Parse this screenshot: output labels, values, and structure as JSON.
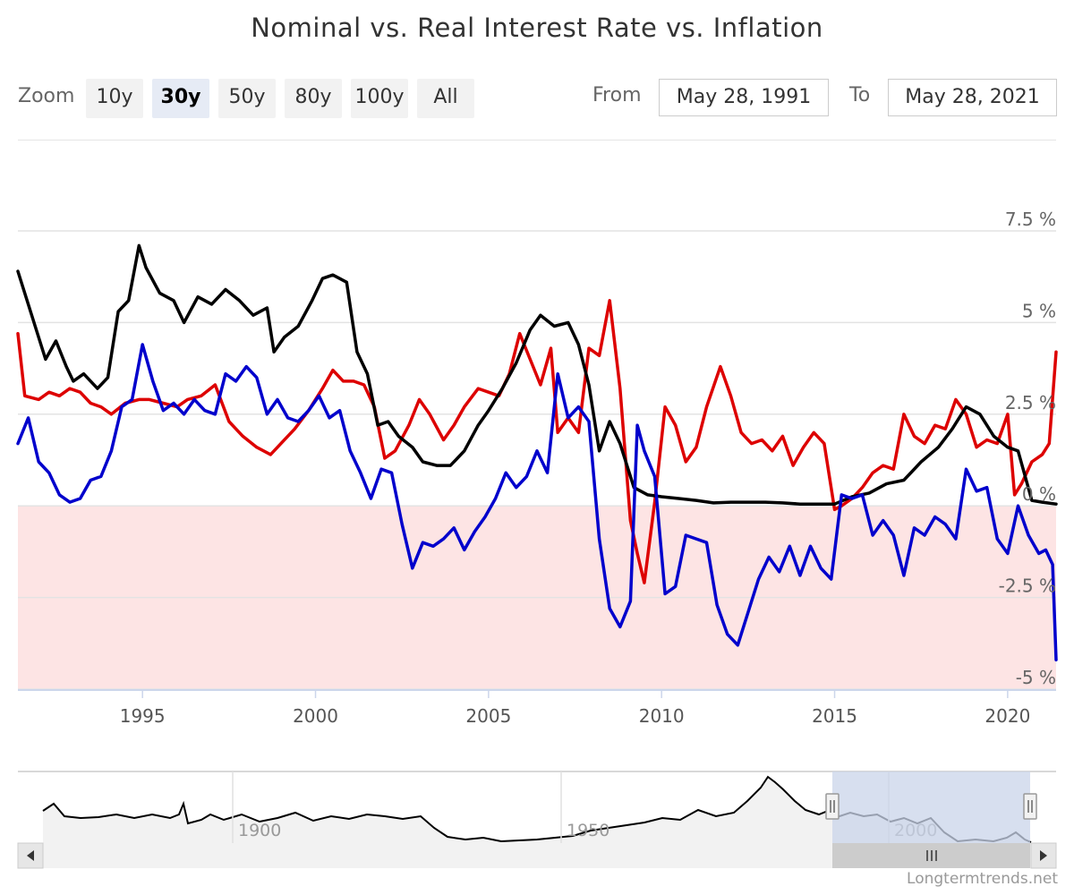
{
  "title": "Nominal vs. Real Interest Rate vs. Inflation",
  "zoom": {
    "label": "Zoom",
    "buttons": [
      "10y",
      "30y",
      "50y",
      "80y",
      "100y",
      "All"
    ],
    "active": "30y"
  },
  "range": {
    "from_label": "From",
    "from_value": "May 28, 1991",
    "to_label": "To",
    "to_value": "May 28, 2021"
  },
  "credit": "Longtermtrends.net",
  "colors": {
    "nominal": "#000000",
    "inflation": "#dd0000",
    "real": "#0000cc",
    "negative_band": "#fde4e4",
    "navigator_mask": "#c9d4ea"
  },
  "chart_data": {
    "type": "line",
    "title": "Nominal vs. Real Interest Rate vs. Inflation",
    "xlim": [
      1991.4,
      2021.4
    ],
    "ylim": [
      -5,
      7.5
    ],
    "y_ticks": [
      -5,
      -2.5,
      0,
      2.5,
      5,
      7.5
    ],
    "y_tick_labels": [
      "-5 %",
      "-2.5 %",
      "0 %",
      "2.5 %",
      "5 %",
      "7.5 %"
    ],
    "x_ticks": [
      1995,
      2000,
      2005,
      2010,
      2015,
      2020
    ],
    "x_tick_labels": [
      "1995",
      "2000",
      "2005",
      "2010",
      "2015",
      "2020"
    ],
    "negative_region": [
      -5,
      0
    ],
    "grid": true,
    "series": [
      {
        "key": "nominal",
        "x": [
          1991.4,
          1991.6,
          1991.9,
          1992.2,
          1992.5,
          1992.8,
          1993.0,
          1993.3,
          1993.7,
          1994.0,
          1994.3,
          1994.6,
          1994.9,
          1995.1,
          1995.5,
          1995.9,
          1996.2,
          1996.6,
          1997.0,
          1997.4,
          1997.8,
          1998.2,
          1998.6,
          1998.8,
          1999.1,
          1999.5,
          1999.9,
          2000.2,
          2000.5,
          2000.9,
          2001.2,
          2001.5,
          2001.8,
          2002.1,
          2002.4,
          2002.8,
          2003.1,
          2003.5,
          2003.9,
          2004.3,
          2004.7,
          2005.0,
          2005.4,
          2005.8,
          2006.2,
          2006.5,
          2006.9,
          2007.3,
          2007.6,
          2007.9,
          2008.2,
          2008.5,
          2008.8,
          2009.2,
          2009.6,
          2010.0,
          2010.5,
          2011.0,
          2011.5,
          2012.0,
          2012.5,
          2013.0,
          2013.5,
          2014.0,
          2014.5,
          2015.0,
          2015.5,
          2016.0,
          2016.5,
          2017.0,
          2017.5,
          2018.0,
          2018.4,
          2018.8,
          2019.2,
          2019.6,
          2020.0,
          2020.3,
          2020.7,
          2021.0,
          2021.4
        ],
        "y": [
          6.4,
          5.8,
          4.9,
          4.0,
          4.5,
          3.8,
          3.4,
          3.6,
          3.2,
          3.5,
          5.3,
          5.6,
          7.1,
          6.5,
          5.8,
          5.6,
          5.0,
          5.7,
          5.5,
          5.9,
          5.6,
          5.2,
          5.4,
          4.2,
          4.6,
          4.9,
          5.6,
          6.2,
          6.3,
          6.1,
          4.2,
          3.6,
          2.2,
          2.3,
          1.9,
          1.6,
          1.2,
          1.1,
          1.1,
          1.5,
          2.2,
          2.6,
          3.2,
          3.9,
          4.8,
          5.2,
          4.9,
          5.0,
          4.4,
          3.3,
          1.5,
          2.3,
          1.7,
          0.5,
          0.3,
          0.25,
          0.2,
          0.15,
          0.08,
          0.1,
          0.1,
          0.1,
          0.08,
          0.05,
          0.05,
          0.05,
          0.25,
          0.35,
          0.6,
          0.7,
          1.2,
          1.6,
          2.1,
          2.7,
          2.5,
          1.9,
          1.6,
          1.5,
          0.15,
          0.1,
          0.05
        ]
      },
      {
        "key": "inflation",
        "x": [
          1991.4,
          1991.6,
          1992.0,
          1992.3,
          1992.6,
          1992.9,
          1993.2,
          1993.5,
          1993.8,
          1994.1,
          1994.5,
          1994.9,
          1995.2,
          1995.6,
          1996.0,
          1996.3,
          1996.7,
          1997.1,
          1997.5,
          1997.9,
          1998.3,
          1998.7,
          1999.0,
          1999.4,
          1999.8,
          2000.2,
          2000.5,
          2000.8,
          2001.1,
          2001.4,
          2001.7,
          2002.0,
          2002.3,
          2002.7,
          2003.0,
          2003.3,
          2003.7,
          2004.0,
          2004.3,
          2004.7,
          2005.0,
          2005.3,
          2005.6,
          2005.9,
          2006.2,
          2006.5,
          2006.8,
          2007.0,
          2007.3,
          2007.6,
          2007.9,
          2008.2,
          2008.5,
          2008.8,
          2009.1,
          2009.3,
          2009.5,
          2009.8,
          2010.1,
          2010.4,
          2010.7,
          2011.0,
          2011.3,
          2011.7,
          2012.0,
          2012.3,
          2012.6,
          2012.9,
          2013.2,
          2013.5,
          2013.8,
          2014.1,
          2014.4,
          2014.7,
          2015.0,
          2015.2,
          2015.5,
          2015.8,
          2016.1,
          2016.4,
          2016.7,
          2017.0,
          2017.3,
          2017.6,
          2017.9,
          2018.2,
          2018.5,
          2018.8,
          2019.1,
          2019.4,
          2019.7,
          2020.0,
          2020.2,
          2020.4,
          2020.7,
          2021.0,
          2021.2,
          2021.4
        ],
        "y": [
          4.7,
          3.0,
          2.9,
          3.1,
          3.0,
          3.2,
          3.1,
          2.8,
          2.7,
          2.5,
          2.8,
          2.9,
          2.9,
          2.8,
          2.7,
          2.9,
          3.0,
          3.3,
          2.3,
          1.9,
          1.6,
          1.4,
          1.7,
          2.1,
          2.6,
          3.2,
          3.7,
          3.4,
          3.4,
          3.3,
          2.7,
          1.3,
          1.5,
          2.2,
          2.9,
          2.5,
          1.8,
          2.2,
          2.7,
          3.2,
          3.1,
          3.0,
          3.6,
          4.7,
          4.0,
          3.3,
          4.3,
          2.0,
          2.4,
          2.0,
          4.3,
          4.1,
          5.6,
          3.2,
          -0.4,
          -1.3,
          -2.1,
          0.1,
          2.7,
          2.2,
          1.2,
          1.6,
          2.7,
          3.8,
          3.0,
          2.0,
          1.7,
          1.8,
          1.5,
          1.9,
          1.1,
          1.6,
          2.0,
          1.7,
          -0.1,
          0.0,
          0.2,
          0.5,
          0.9,
          1.1,
          1.0,
          2.5,
          1.9,
          1.7,
          2.2,
          2.1,
          2.9,
          2.5,
          1.6,
          1.8,
          1.7,
          2.5,
          0.3,
          0.6,
          1.2,
          1.4,
          1.7,
          4.2
        ]
      },
      {
        "key": "real",
        "x": [
          1991.4,
          1991.7,
          1992.0,
          1992.3,
          1992.6,
          1992.9,
          1993.2,
          1993.5,
          1993.8,
          1994.1,
          1994.4,
          1994.7,
          1995.0,
          1995.3,
          1995.6,
          1995.9,
          1996.2,
          1996.5,
          1996.8,
          1997.1,
          1997.4,
          1997.7,
          1998.0,
          1998.3,
          1998.6,
          1998.9,
          1999.2,
          1999.5,
          1999.8,
          2000.1,
          2000.4,
          2000.7,
          2001.0,
          2001.3,
          2001.6,
          2001.9,
          2002.2,
          2002.5,
          2002.8,
          2003.1,
          2003.4,
          2003.7,
          2004.0,
          2004.3,
          2004.6,
          2004.9,
          2005.2,
          2005.5,
          2005.8,
          2006.1,
          2006.4,
          2006.7,
          2007.0,
          2007.3,
          2007.6,
          2007.9,
          2008.2,
          2008.5,
          2008.8,
          2009.1,
          2009.3,
          2009.5,
          2009.8,
          2010.1,
          2010.4,
          2010.7,
          2011.0,
          2011.3,
          2011.6,
          2011.9,
          2012.2,
          2012.5,
          2012.8,
          2013.1,
          2013.4,
          2013.7,
          2014.0,
          2014.3,
          2014.6,
          2014.9,
          2015.2,
          2015.5,
          2015.8,
          2016.1,
          2016.4,
          2016.7,
          2017.0,
          2017.3,
          2017.6,
          2017.9,
          2018.2,
          2018.5,
          2018.8,
          2019.1,
          2019.4,
          2019.7,
          2020.0,
          2020.3,
          2020.6,
          2020.9,
          2021.1,
          2021.3,
          2021.4
        ],
        "y": [
          1.7,
          2.4,
          1.2,
          0.9,
          0.3,
          0.1,
          0.2,
          0.7,
          0.8,
          1.5,
          2.7,
          2.9,
          4.4,
          3.4,
          2.6,
          2.8,
          2.5,
          2.9,
          2.6,
          2.5,
          3.6,
          3.4,
          3.8,
          3.5,
          2.5,
          2.9,
          2.4,
          2.3,
          2.6,
          3.0,
          2.4,
          2.6,
          1.5,
          0.9,
          0.2,
          1.0,
          0.9,
          -0.5,
          -1.7,
          -1.0,
          -1.1,
          -0.9,
          -0.6,
          -1.2,
          -0.7,
          -0.3,
          0.2,
          0.9,
          0.5,
          0.8,
          1.5,
          0.9,
          3.6,
          2.4,
          2.7,
          2.3,
          -0.9,
          -2.8,
          -3.3,
          -2.6,
          2.2,
          1.5,
          0.8,
          -2.4,
          -2.2,
          -0.8,
          -0.9,
          -1.0,
          -2.7,
          -3.5,
          -3.8,
          -2.9,
          -2.0,
          -1.4,
          -1.8,
          -1.1,
          -1.9,
          -1.1,
          -1.7,
          -2.0,
          0.3,
          0.2,
          0.3,
          -0.8,
          -0.4,
          -0.8,
          -1.9,
          -0.6,
          -0.8,
          -0.3,
          -0.5,
          -0.9,
          1.0,
          0.4,
          0.5,
          -0.9,
          -1.3,
          0.0,
          -0.8,
          -1.3,
          -1.2,
          -1.6,
          -4.2
        ]
      }
    ],
    "navigator": {
      "x_ticks": [
        1900,
        1950,
        2000
      ],
      "x_tick_labels": [
        "1900",
        "1950",
        "2000"
      ]
    }
  }
}
